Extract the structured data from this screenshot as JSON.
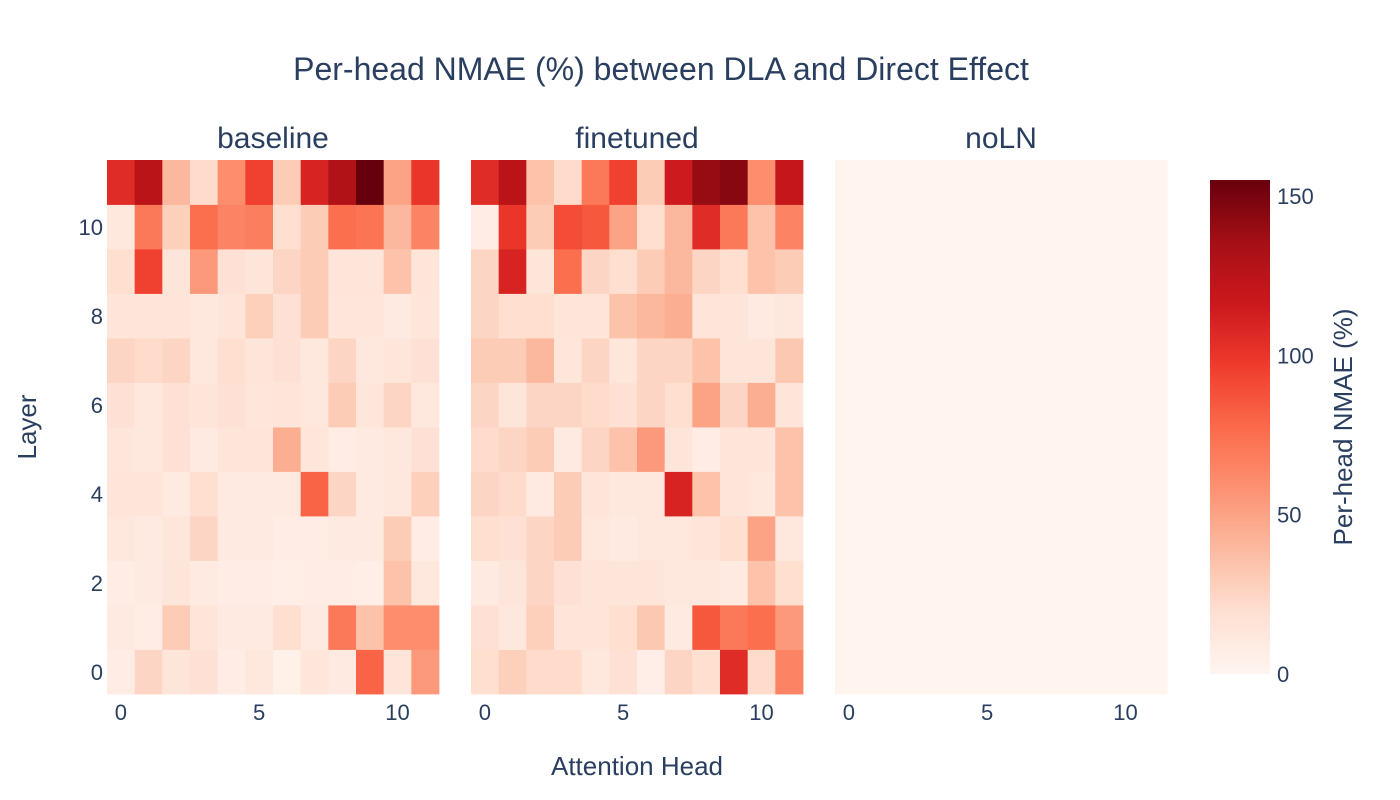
{
  "chart_data": {
    "type": "heatmap",
    "title": "Per-head NMAE (%) between DLA and Direct Effect",
    "xlabel": "Attention Head",
    "ylabel": "Layer",
    "x_ticks": [
      "0",
      "5",
      "10"
    ],
    "y_ticks": [
      "0",
      "2",
      "4",
      "6",
      "8",
      "10"
    ],
    "x_values": [
      0,
      1,
      2,
      3,
      4,
      5,
      6,
      7,
      8,
      9,
      10,
      11
    ],
    "y_values": [
      0,
      1,
      2,
      3,
      4,
      5,
      6,
      7,
      8,
      9,
      10,
      11
    ],
    "colorscale": "Reds",
    "colorscale_stops": [
      "#fff5f0",
      "#fee0d2",
      "#fcbba1",
      "#fc9272",
      "#fb6a4a",
      "#ef3b2c",
      "#cb181d",
      "#a50f15",
      "#67000d"
    ],
    "zmin": 0,
    "zmax": 155,
    "colorbar": {
      "title": "Per-head NMAE (%)",
      "ticks": [
        "0",
        "50",
        "100",
        "150"
      ],
      "tick_values": [
        0,
        50,
        100,
        150
      ]
    },
    "panels": [
      {
        "name": "baseline",
        "z": [
          [
            8,
            25,
            15,
            18,
            8,
            12,
            5,
            14,
            10,
            80,
            15,
            55
          ],
          [
            10,
            8,
            30,
            15,
            10,
            10,
            20,
            10,
            70,
            35,
            60,
            60
          ],
          [
            8,
            10,
            15,
            10,
            8,
            8,
            6,
            8,
            8,
            6,
            35,
            12
          ],
          [
            12,
            10,
            14,
            25,
            10,
            10,
            8,
            8,
            10,
            10,
            30,
            8
          ],
          [
            15,
            15,
            10,
            20,
            10,
            10,
            10,
            80,
            25,
            10,
            12,
            28
          ],
          [
            14,
            12,
            18,
            10,
            15,
            15,
            45,
            14,
            8,
            10,
            12,
            18
          ],
          [
            18,
            12,
            18,
            15,
            18,
            14,
            15,
            12,
            30,
            14,
            25,
            12
          ],
          [
            25,
            22,
            25,
            12,
            20,
            15,
            18,
            12,
            25,
            12,
            14,
            18
          ],
          [
            15,
            15,
            15,
            12,
            15,
            28,
            18,
            30,
            14,
            14,
            10,
            14
          ],
          [
            20,
            95,
            15,
            55,
            18,
            15,
            25,
            30,
            15,
            15,
            35,
            15
          ],
          [
            12,
            70,
            28,
            75,
            65,
            68,
            20,
            30,
            75,
            72,
            40,
            65
          ],
          [
            105,
            125,
            40,
            22,
            60,
            95,
            30,
            110,
            130,
            155,
            50,
            100
          ]
        ]
      },
      {
        "name": "finetuned",
        "z": [
          [
            20,
            28,
            22,
            22,
            12,
            18,
            6,
            25,
            20,
            105,
            22,
            65
          ],
          [
            18,
            12,
            28,
            15,
            15,
            20,
            32,
            10,
            85,
            70,
            75,
            55
          ],
          [
            10,
            15,
            25,
            18,
            15,
            15,
            15,
            12,
            12,
            10,
            35,
            20
          ],
          [
            20,
            18,
            25,
            30,
            12,
            10,
            12,
            12,
            15,
            20,
            50,
            12
          ],
          [
            25,
            22,
            10,
            30,
            15,
            12,
            12,
            110,
            35,
            15,
            12,
            35
          ],
          [
            22,
            25,
            30,
            10,
            25,
            35,
            55,
            15,
            8,
            15,
            15,
            35
          ],
          [
            25,
            15,
            25,
            25,
            22,
            18,
            25,
            20,
            50,
            25,
            45,
            15
          ],
          [
            30,
            30,
            40,
            14,
            25,
            14,
            25,
            25,
            35,
            15,
            15,
            32
          ],
          [
            25,
            20,
            20,
            15,
            15,
            35,
            40,
            45,
            15,
            15,
            10,
            12
          ],
          [
            25,
            110,
            15,
            75,
            25,
            20,
            30,
            40,
            25,
            20,
            35,
            30
          ],
          [
            8,
            100,
            30,
            90,
            85,
            50,
            20,
            40,
            105,
            70,
            35,
            65
          ],
          [
            105,
            125,
            35,
            22,
            70,
            95,
            30,
            115,
            140,
            145,
            60,
            120
          ]
        ]
      },
      {
        "name": "noLN",
        "z": [
          [
            1,
            1,
            1,
            1,
            1,
            1,
            1,
            1,
            1,
            1,
            1,
            1
          ],
          [
            1,
            1,
            1,
            1,
            1,
            1,
            1,
            1,
            1,
            1,
            1,
            1
          ],
          [
            1,
            1,
            1,
            1,
            1,
            1,
            1,
            1,
            1,
            1,
            1,
            1
          ],
          [
            1,
            1,
            1,
            1,
            1,
            1,
            1,
            1,
            1,
            1,
            1,
            1
          ],
          [
            1,
            1,
            1,
            1,
            1,
            1,
            1,
            1,
            1,
            1,
            1,
            1
          ],
          [
            1,
            1,
            1,
            1,
            1,
            1,
            1,
            1,
            1,
            1,
            1,
            1
          ],
          [
            1,
            1,
            1,
            1,
            1,
            1,
            1,
            1,
            1,
            1,
            1,
            1
          ],
          [
            1,
            1,
            1,
            1,
            1,
            1,
            1,
            1,
            1,
            1,
            1,
            1
          ],
          [
            1,
            1,
            1,
            1,
            1,
            1,
            1,
            1,
            1,
            1,
            1,
            1
          ],
          [
            1,
            1,
            1,
            1,
            1,
            1,
            1,
            1,
            1,
            1,
            1,
            1
          ],
          [
            1,
            1,
            1,
            1,
            1,
            1,
            1,
            1,
            1,
            1,
            1,
            1
          ],
          [
            1,
            1,
            1,
            1,
            1,
            1,
            1,
            1,
            1,
            1,
            1,
            1
          ]
        ]
      }
    ]
  }
}
